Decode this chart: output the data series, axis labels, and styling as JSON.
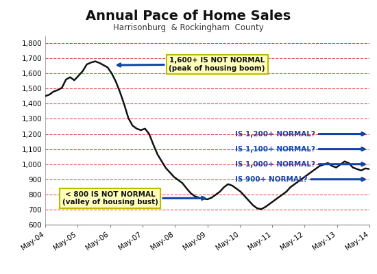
{
  "title": "Annual Pace of Home Sales",
  "subtitle": "Harrisonburg  & Rockingham  County",
  "background_color": "#ffffff",
  "line_color": "#111111",
  "grid_color": "#dd2222",
  "ylim": [
    600,
    1850
  ],
  "yticks": [
    600,
    700,
    800,
    900,
    1000,
    1100,
    1200,
    1300,
    1400,
    1500,
    1600,
    1700,
    1800
  ],
  "ytick_labels": [
    "600",
    "700",
    "800",
    "900",
    "1,000",
    "1,100",
    "1,200",
    "1,300",
    "1,400",
    "1,500",
    "1,600",
    "1,700",
    "1,800"
  ],
  "x_labels": [
    "May-04",
    "May-05",
    "May-06",
    "May-07",
    "May-08",
    "May-09",
    "May-10",
    "May-11",
    "May-12",
    "May-13",
    "May-14"
  ],
  "data": [
    1450,
    1460,
    1480,
    1490,
    1505,
    1560,
    1575,
    1555,
    1585,
    1615,
    1660,
    1672,
    1680,
    1670,
    1655,
    1640,
    1600,
    1545,
    1475,
    1395,
    1305,
    1255,
    1235,
    1225,
    1235,
    1200,
    1130,
    1065,
    1020,
    975,
    945,
    915,
    895,
    875,
    840,
    808,
    788,
    778,
    772,
    768,
    778,
    798,
    818,
    848,
    868,
    858,
    838,
    818,
    788,
    758,
    728,
    708,
    703,
    718,
    738,
    758,
    778,
    798,
    818,
    848,
    868,
    888,
    908,
    928,
    948,
    968,
    988,
    998,
    1008,
    988,
    978,
    998,
    1018,
    1008,
    978,
    968,
    958,
    972,
    968
  ],
  "annotation_box1_text": "1,600+ IS NOT NORMAL\n(peak of housing boom)",
  "annotation_box2_text": "< 800 IS NOT NORMAL\n(valley of housing bust)",
  "annotation_q1": "IS 1,200+ NORMAL?",
  "annotation_q2": "IS 1,100+ NORMAL?",
  "annotation_q3": "IS 1,000+ NORMAL?",
  "annotation_q4": "IS 900+ NORMAL?",
  "box_facecolor": "#ffffbb",
  "box_edgecolor": "#bbbb00",
  "arrow_color": "#1144aa"
}
